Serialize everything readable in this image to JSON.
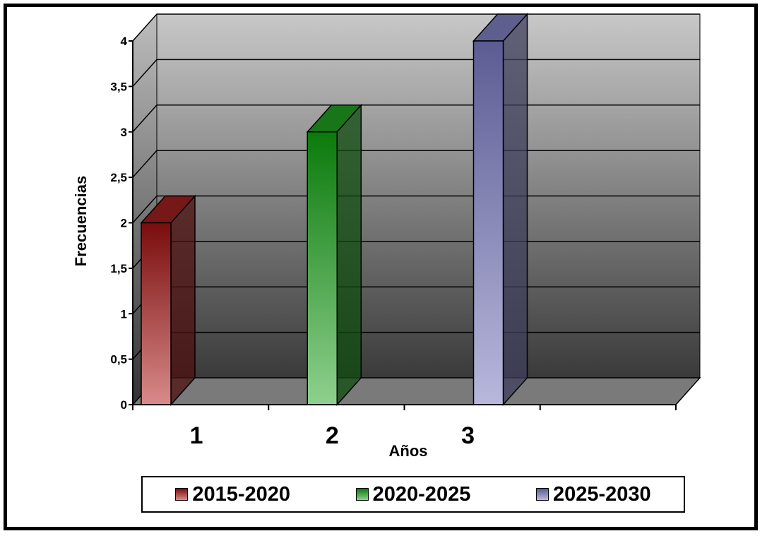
{
  "chart_data": {
    "type": "bar",
    "title": "",
    "xlabel": "Años",
    "ylabel": "Frecuencias",
    "categories": [
      "1",
      "2",
      "3"
    ],
    "series": [
      {
        "name": "2015-2020",
        "values": [
          2,
          null,
          null
        ],
        "color": "#8b1c1c"
      },
      {
        "name": "2020-2025",
        "values": [
          null,
          3,
          null
        ],
        "color": "#1c8a1c"
      },
      {
        "name": "2025-2030",
        "values": [
          null,
          null,
          4
        ],
        "color": "#7070a8"
      }
    ],
    "ylim": [
      0,
      4
    ],
    "yticks": [
      "0",
      "0,5",
      "1",
      "1,5",
      "2",
      "2,5",
      "3",
      "3,5",
      "4"
    ],
    "grid": true,
    "legend_position": "bottom",
    "three_d": true
  }
}
